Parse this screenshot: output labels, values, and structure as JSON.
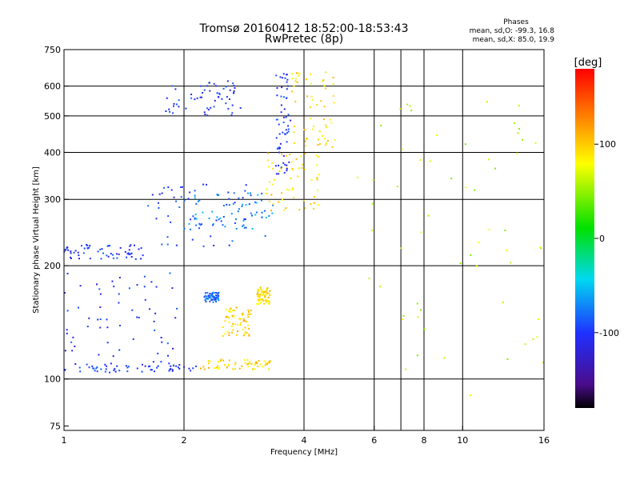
{
  "chart_data": {
    "type": "scatter",
    "title": "Tromsø 20160412 18:52:00-18:53:43",
    "subtitle": "RwPretec (8p)",
    "xlabel": "Frequency [MHz]",
    "ylabel": "Stationary phase Virtual Height [km]",
    "x_scale": "log",
    "y_scale": "log",
    "xlim": [
      1,
      16
    ],
    "ylim": [
      73,
      750
    ],
    "x_ticks": [
      1,
      2,
      4,
      6,
      8,
      10,
      16
    ],
    "y_ticks": [
      75,
      100,
      200,
      300,
      400,
      500,
      600,
      750
    ],
    "x_grid": [
      2,
      4,
      6,
      7,
      8,
      10
    ],
    "y_grid": [
      100,
      200,
      300,
      400,
      500,
      600
    ],
    "stats": {
      "heading": "Phases",
      "line1": "mean, sd,O: -99.3, 16.8",
      "line2": "mean, sd,X:  85.0, 19.9"
    },
    "colorbar": {
      "label": "[deg]",
      "ticks": [
        100,
        0,
        -100
      ],
      "range": [
        -180,
        180
      ]
    },
    "series": [
      {
        "x_range": [
          1.0,
          2.15
        ],
        "y_range": [
          104,
          110
        ],
        "phase": -100
      },
      {
        "x_range": [
          2.2,
          3.3
        ],
        "y_range": [
          106,
          113
        ],
        "phase": 95
      },
      {
        "x_range": [
          1.0,
          1.95
        ],
        "y_range": [
          110,
          195
        ],
        "phase": -100
      },
      {
        "x_range": [
          2.5,
          2.95
        ],
        "y_range": [
          130,
          155
        ],
        "phase": 95
      },
      {
        "x_range": [
          3.05,
          3.3
        ],
        "y_range": [
          158,
          175
        ],
        "phase": 95
      },
      {
        "x_range": [
          2.25,
          2.45
        ],
        "y_range": [
          160,
          170
        ],
        "phase": -80
      },
      {
        "x_range": [
          1.0,
          1.6
        ],
        "y_range": [
          208,
          228
        ],
        "phase": -100
      },
      {
        "x_range": [
          1.6,
          3.2
        ],
        "y_range": [
          225,
          330
        ],
        "phase": -95
      },
      {
        "x_range": [
          2.0,
          3.35
        ],
        "y_range": [
          250,
          315
        ],
        "phase": -70
      },
      {
        "x_range": [
          3.2,
          4.4
        ],
        "y_range": [
          280,
          400
        ],
        "phase": 95
      },
      {
        "x_range": [
          1.8,
          2.8
        ],
        "y_range": [
          500,
          620
        ],
        "phase": -100
      },
      {
        "x_range": [
          3.4,
          3.7
        ],
        "y_range": [
          350,
          650
        ],
        "phase": -100
      },
      {
        "x_range": [
          3.7,
          4.8
        ],
        "y_range": [
          410,
          660
        ],
        "phase": 90
      },
      {
        "x_range": [
          5.4,
          16.0
        ],
        "y_range": [
          90,
          560
        ],
        "phase": 60
      }
    ]
  }
}
